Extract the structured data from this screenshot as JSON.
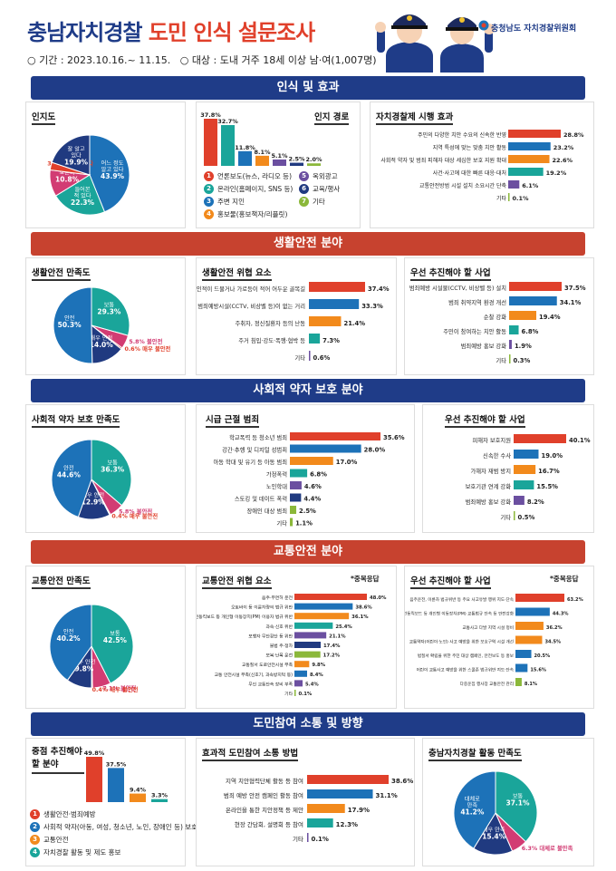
{
  "header": {
    "title_part1": "충남자치경찰",
    "title_part2": "도민 인식 설문조사",
    "period": "○ 기간 : 2023.10.16.~ 11.15.",
    "target": "○ 대상 : 도내 거주 18세 이상 남·여(1,007명)",
    "org": "충청남도 자치경찰위원회"
  },
  "colors": {
    "navy": "#1f3c88",
    "red": "#e0402b",
    "teal": "#1aa59a",
    "orange": "#f28a1c",
    "green": "#8bb83a",
    "purple": "#6b4fa0",
    "pink": "#d23c73",
    "blue": "#1d72b8",
    "darkblue": "#203a80"
  },
  "sections": {
    "s1": "인식 및 효과",
    "s2": "생활안전 분야",
    "s3": "사회적 약자 보호 분야",
    "s4": "교통안전 분야",
    "s5": "도민참여 소통 및 방향"
  },
  "note_multi": "*중복응답",
  "chart_data": [
    {
      "id": "c1",
      "type": "pie",
      "title": "인지도",
      "slices": [
        {
          "label": "어느 정도 알고 있다",
          "value": 43.9,
          "color": "#1d72b8"
        },
        {
          "label": "들어본 적 있다",
          "value": 22.3,
          "color": "#1aa59a"
        },
        {
          "label": "모른다",
          "value": 10.8,
          "color": "#d23c73"
        },
        {
          "label": "전혀 모른다",
          "value": 3.1,
          "color": "#e0402b"
        },
        {
          "label": "잘 알고 있다",
          "value": 19.9,
          "color": "#203a80"
        }
      ]
    },
    {
      "id": "c2",
      "type": "bar",
      "title": "인지 경로",
      "categories": [
        "언론보도(뉴스, 라디오 등)",
        "온라인(홈페이지, SNS 등)",
        "주변 지인",
        "홍보물(홍보책자/리플릿)",
        "옥외광고",
        "교육/행사",
        "기타"
      ],
      "values": [
        37.8,
        32.7,
        11.8,
        8.1,
        5.1,
        2.5,
        2.0
      ],
      "colors": [
        "#e0402b",
        "#1aa59a",
        "#1d72b8",
        "#f28a1c",
        "#6b4fa0",
        "#203a80",
        "#8bb83a"
      ]
    },
    {
      "id": "c3",
      "type": "bar",
      "title": "자치경찰제 시행 효과",
      "categories": [
        "주민의 다양한 치안 수요의 신속한 반영",
        "지역 특성에 맞는 맞춤 치안 활동",
        "사회적 약자 및 범죄 피해자 대상 세심한 보호 지원 확대",
        "사건·사고에 대한 빠른 대응·대처",
        "교통안전방범 시설 설치 소요시간 단축",
        "기타"
      ],
      "values": [
        28.8,
        23.2,
        22.6,
        19.2,
        6.1,
        0.1
      ],
      "colors": [
        "#e0402b",
        "#1d72b8",
        "#f28a1c",
        "#1aa59a",
        "#6b4fa0",
        "#8bb83a"
      ]
    },
    {
      "id": "c4",
      "type": "pie",
      "title": "생활안전 만족도",
      "slices": [
        {
          "label": "보통",
          "value": 29.3,
          "color": "#1aa59a"
        },
        {
          "label": "불안전",
          "value": 5.8,
          "color": "#d23c73"
        },
        {
          "label": "매우 불안전",
          "value": 0.6,
          "color": "#e0402b"
        },
        {
          "label": "매우 안전",
          "value": 14.0,
          "color": "#203a80"
        },
        {
          "label": "안전",
          "value": 50.3,
          "color": "#1d72b8"
        }
      ]
    },
    {
      "id": "c5",
      "type": "bar",
      "title": "생활안전 위협 요소",
      "categories": [
        "인적이 드물거나 가로등이 적어 어두운 골목길",
        "범죄예방시설(CCTV, 비상벨 등)이 없는 거리",
        "주취자, 정신질환자 등의 난동",
        "주거 침입·강도·폭행·협박 등",
        "기타"
      ],
      "values": [
        37.4,
        33.3,
        21.4,
        7.3,
        0.6
      ],
      "colors": [
        "#e0402b",
        "#1d72b8",
        "#f28a1c",
        "#1aa59a",
        "#6b4fa0"
      ]
    },
    {
      "id": "c6",
      "type": "bar",
      "title": "우선 추진해야 할 사업",
      "categories": [
        "범죄예방 시설물(CCTV, 비상벨 등) 설치",
        "범죄 취약지역 환경 개선",
        "순찰 강화",
        "주민이 참여하는 치안 활동",
        "범죄예방 홍보 강화",
        "기타"
      ],
      "values": [
        37.5,
        34.1,
        19.4,
        6.8,
        1.9,
        0.3
      ],
      "colors": [
        "#e0402b",
        "#1d72b8",
        "#f28a1c",
        "#1aa59a",
        "#6b4fa0",
        "#8bb83a"
      ]
    },
    {
      "id": "c7",
      "type": "pie",
      "title": "사회적 약자 보호 만족도",
      "slices": [
        {
          "label": "보통",
          "value": 36.3,
          "color": "#1aa59a"
        },
        {
          "label": "불안전",
          "value": 5.8,
          "color": "#d23c73"
        },
        {
          "label": "매우 불안전",
          "value": 0.4,
          "color": "#e0402b"
        },
        {
          "label": "매우 안전",
          "value": 12.9,
          "color": "#203a80"
        },
        {
          "label": "안전",
          "value": 44.6,
          "color": "#1d72b8"
        }
      ]
    },
    {
      "id": "c8",
      "type": "bar",
      "title": "시급 근절 범죄",
      "categories": [
        "학교폭력 등 청소년 범죄",
        "강간·추행 및 디지털 성범죄",
        "아동 학대 및 유기 등 아동 범죄",
        "가정폭력",
        "노인학대",
        "스토킹 및 데이트 폭력",
        "장애인 대상 범죄",
        "기타"
      ],
      "values": [
        35.6,
        28.0,
        17.0,
        6.8,
        4.6,
        4.4,
        2.5,
        1.1
      ],
      "colors": [
        "#e0402b",
        "#1d72b8",
        "#f28a1c",
        "#1aa59a",
        "#6b4fa0",
        "#203a80",
        "#8bb83a",
        "#8bb83a"
      ]
    },
    {
      "id": "c9",
      "type": "bar",
      "title": "우선 추진해야 할 사업",
      "categories": [
        "피해자 보호지원",
        "신속한 수사",
        "가해자 재범 방지",
        "보호기관 연계 강화",
        "범죄예방 홍보 강화",
        "기타"
      ],
      "values": [
        40.1,
        19.0,
        16.7,
        15.5,
        8.2,
        0.5
      ],
      "colors": [
        "#e0402b",
        "#1d72b8",
        "#f28a1c",
        "#1aa59a",
        "#6b4fa0",
        "#8bb83a"
      ]
    },
    {
      "id": "c10",
      "type": "pie",
      "title": "교통안전 만족도",
      "slices": [
        {
          "label": "보통",
          "value": 42.5,
          "color": "#1aa59a"
        },
        {
          "label": "불안전",
          "value": 7.1,
          "color": "#d23c73"
        },
        {
          "label": "매우 불안전",
          "value": 0.4,
          "color": "#e0402b"
        },
        {
          "label": "매우 안전",
          "value": 9.8,
          "color": "#203a80"
        },
        {
          "label": "안전",
          "value": 40.2,
          "color": "#1d72b8"
        }
      ]
    },
    {
      "id": "c11",
      "type": "bar",
      "title": "교통안전 위협 요소",
      "categories": [
        "음주·무면허 운전",
        "오토바이 등 이륜차량의 법규 위반",
        "전동킥보드 등 개인형 이동장치(PM) 이용자 법규 위반",
        "과속·신호 위반",
        "보행자 무단횡단 등 위반",
        "불법 주·정차",
        "보복·난폭 운전",
        "교통질서 도로안전시설 부족",
        "교통 안전시설 부족(신호기, 과속방지턱 등)",
        "무인 교통단속 장비 부족",
        "기타"
      ],
      "values": [
        48.0,
        38.6,
        36.1,
        25.4,
        21.1,
        17.4,
        17.2,
        9.8,
        8.4,
        5.4,
        0.1
      ],
      "colors": [
        "#e0402b",
        "#1d72b8",
        "#f28a1c",
        "#1aa59a",
        "#6b4fa0",
        "#203a80",
        "#8bb83a",
        "#f28a1c",
        "#1d72b8",
        "#6b4fa0",
        "#8bb83a"
      ]
    },
    {
      "id": "c12",
      "type": "bar",
      "title": "우선 추진해야 할 사업",
      "categories": [
        "음주운전, 이륜차 법규위반 등 주요 사고유발 행위 지도·단속",
        "전동킥보드 등 개인형 이동장치(PM) 교통법규 단속 등 안전강화",
        "교통사고 다발 지역 시설 정비",
        "교통약자(어린이·노인) 사고 예방을 위한 보호구역 시설 개선",
        "법질서 확립을 위한 주민 대상 캠페인, 안전보도 등 홍보",
        "어린이 교통사고 예방을 위한 스쿨존 법규위반 지도·단속",
        "다중운집 행사장 교통안전 관리"
      ],
      "values": [
        63.2,
        44.3,
        36.2,
        34.5,
        20.5,
        15.6,
        8.1
      ],
      "colors": [
        "#e0402b",
        "#1d72b8",
        "#f28a1c",
        "#f28a1c",
        "#1d72b8",
        "#1d72b8",
        "#8bb83a"
      ]
    },
    {
      "id": "c13",
      "type": "bar",
      "title": "중점 추진해야 할 분야",
      "categories": [
        "생활안전·범죄예방",
        "사회적 약자(아동, 여성, 청소년, 노인, 장애인 등) 보호",
        "교통안전",
        "자치경찰 활동 및 제도 홍보"
      ],
      "values": [
        49.8,
        37.5,
        9.4,
        3.3
      ],
      "colors": [
        "#e0402b",
        "#1d72b8",
        "#f28a1c",
        "#1aa59a"
      ]
    },
    {
      "id": "c14",
      "type": "bar",
      "title": "효과적 도민참여 소통 방법",
      "categories": [
        "지역 치안협력단체 활동 등 참여",
        "범죄 예방 안전 캠페인 활동 참여",
        "온라인을 통한 치안정책 등 제안",
        "현장 간담회, 설명회 등 참여",
        "기타"
      ],
      "values": [
        38.6,
        31.1,
        17.9,
        12.3,
        0.1
      ],
      "colors": [
        "#e0402b",
        "#1d72b8",
        "#f28a1c",
        "#1aa59a",
        "#6b4fa0"
      ]
    },
    {
      "id": "c15",
      "type": "pie",
      "title": "충남자치경찰 활동 만족도",
      "slices": [
        {
          "label": "보통",
          "value": 37.1,
          "color": "#1aa59a"
        },
        {
          "label": "대체로 불만족",
          "value": 6.3,
          "color": "#d23c73"
        },
        {
          "label": "매우 만족",
          "value": 15.4,
          "color": "#203a80"
        },
        {
          "label": "대체로 만족",
          "value": 41.2,
          "color": "#1d72b8"
        }
      ]
    }
  ]
}
